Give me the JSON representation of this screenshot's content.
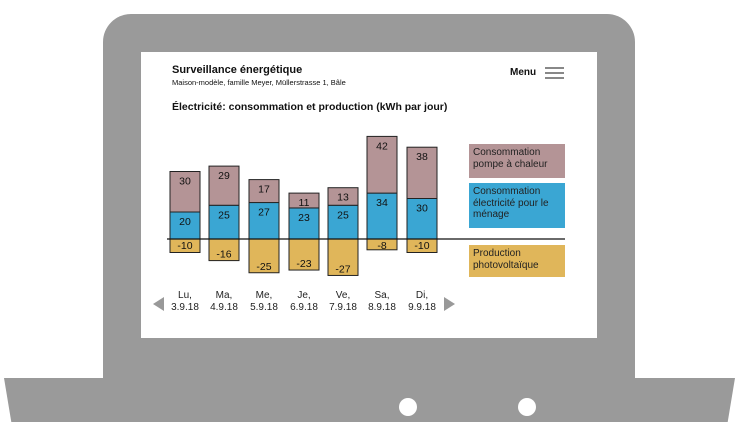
{
  "header": {
    "title": "Surveillance énergétique",
    "subtitle": "Maison-modèle, famille Meyer, Müllerstrasse 1, Bâle",
    "menu_label": "Menu"
  },
  "section": {
    "title": "Électricité: consommation et production (kWh par jour)"
  },
  "legend": [
    {
      "label": "Consommation pompe à chaleur",
      "color": "#b49496"
    },
    {
      "label": "Consommation électricité pour le ménage",
      "color": "#3aa6d3"
    },
    {
      "label": "Production photovoltaïque",
      "color": "#e0b65a"
    }
  ],
  "days": [
    {
      "day": "Lu,",
      "date": "3.9.18"
    },
    {
      "day": "Ma,",
      "date": "4.9.18"
    },
    {
      "day": "Me,",
      "date": "5.9.18"
    },
    {
      "day": "Je,",
      "date": "6.9.18"
    },
    {
      "day": "Ve,",
      "date": "7.9.18"
    },
    {
      "day": "Sa,",
      "date": "8.9.18"
    },
    {
      "day": "Di,",
      "date": "9.9.18"
    }
  ],
  "chart_data": {
    "type": "bar",
    "stacked": true,
    "categories": [
      "Lu, 3.9.18",
      "Ma, 4.9.18",
      "Me, 5.9.18",
      "Je, 6.9.18",
      "Ve, 7.9.18",
      "Sa, 8.9.18",
      "Di, 9.9.18"
    ],
    "series": [
      {
        "name": "Consommation électricité pour le ménage",
        "values": [
          20,
          25,
          27,
          23,
          25,
          34,
          30
        ],
        "color": "#3aa6d3"
      },
      {
        "name": "Consommation pompe à chaleur",
        "values": [
          30,
          29,
          17,
          11,
          13,
          42,
          38
        ],
        "color": "#b49496"
      },
      {
        "name": "Production photovoltaïque",
        "values": [
          -10,
          -16,
          -25,
          -23,
          -27,
          -8,
          -10
        ],
        "color": "#e0b65a"
      }
    ],
    "title": "Électricité: consommation et production (kWh par jour)",
    "ylim": [
      -30,
      80
    ]
  }
}
